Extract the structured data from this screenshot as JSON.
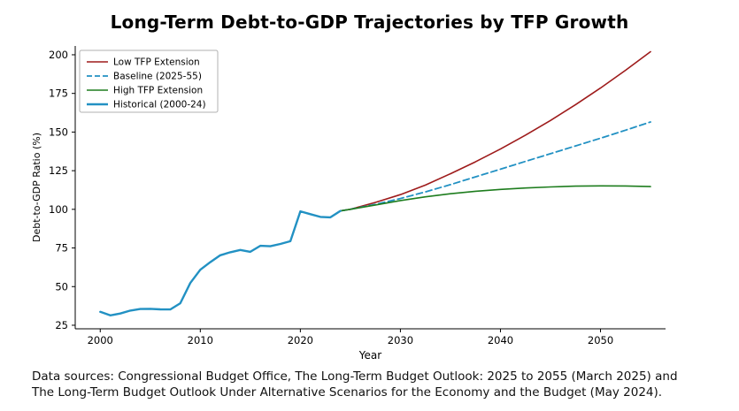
{
  "footer": {
    "line1": "Data sources: Congressional Budget Office, The Long-Term Budget Outlook: 2025 to 2055 (March 2025) and",
    "line2": "The Long-Term Budget Outlook Under Alternative Scenarios for the Economy and the Budget (May 2024)."
  },
  "chart_data": {
    "type": "line",
    "title": "Long-Term Debt-to-GDP Trajectories by TFP Growth",
    "xlabel": "Year",
    "ylabel": "Debt-to-GDP Ratio (%)",
    "xlim": [
      1997.5,
      2056.5
    ],
    "ylim": [
      22.7,
      205.7
    ],
    "xticks": [
      2000,
      2010,
      2020,
      2030,
      2040,
      2050
    ],
    "yticks": [
      25,
      50,
      75,
      100,
      125,
      150,
      175,
      200
    ],
    "grid": false,
    "legend_position": "upper left",
    "axis_color": "#000000",
    "series": [
      {
        "name": "Low TFP Extension",
        "color": "#9e1b1b",
        "style": "solid",
        "width": 1.6,
        "x": [
          2024,
          2025,
          2027.5,
          2030,
          2032.5,
          2035,
          2037.5,
          2040,
          2042.5,
          2045,
          2047.5,
          2050,
          2052.5,
          2055
        ],
        "y": [
          99,
          100,
          104.5,
          109.5,
          115.7,
          123,
          130.7,
          139,
          148,
          157.5,
          167.7,
          178.5,
          190,
          202
        ]
      },
      {
        "name": "Baseline (2025-55)",
        "color": "#2291c3",
        "style": "dashed",
        "width": 1.8,
        "x": [
          2024,
          2025,
          2027.5,
          2030,
          2032.5,
          2035,
          2037.5,
          2040,
          2042.5,
          2045,
          2047.5,
          2050,
          2052.5,
          2055
        ],
        "y": [
          99,
          100,
          103.2,
          107,
          111.3,
          116,
          121,
          126,
          131,
          136,
          141,
          146,
          151.2,
          156.5
        ]
      },
      {
        "name": "High TFP Extension",
        "color": "#1e7d1e",
        "style": "solid",
        "width": 1.6,
        "x": [
          2024,
          2025,
          2027.5,
          2030,
          2032.5,
          2035,
          2037.5,
          2040,
          2042.5,
          2045,
          2047.5,
          2050,
          2052.5,
          2055
        ],
        "y": [
          99,
          100,
          102.8,
          105.7,
          108.1,
          110.1,
          111.7,
          112.9,
          113.8,
          114.5,
          115.0,
          115.2,
          115.1,
          114.7
        ]
      },
      {
        "name": "Historical (2000-24)",
        "color": "#2291c3",
        "style": "solid",
        "width": 2.4,
        "x": [
          2000,
          2001,
          2002,
          2003,
          2004,
          2005,
          2006,
          2007,
          2008,
          2009,
          2010,
          2011,
          2012,
          2013,
          2014,
          2015,
          2016,
          2017,
          2018,
          2019,
          2020,
          2021,
          2022,
          2023,
          2024
        ],
        "y": [
          33.7,
          31.4,
          32.6,
          34.5,
          35.5,
          35.6,
          35.3,
          35.2,
          39.2,
          52.3,
          60.9,
          65.8,
          70.3,
          72.2,
          73.7,
          72.5,
          76.4,
          76.1,
          77.6,
          79.4,
          98.7,
          96.9,
          95.1,
          94.8,
          99.0
        ]
      }
    ]
  }
}
